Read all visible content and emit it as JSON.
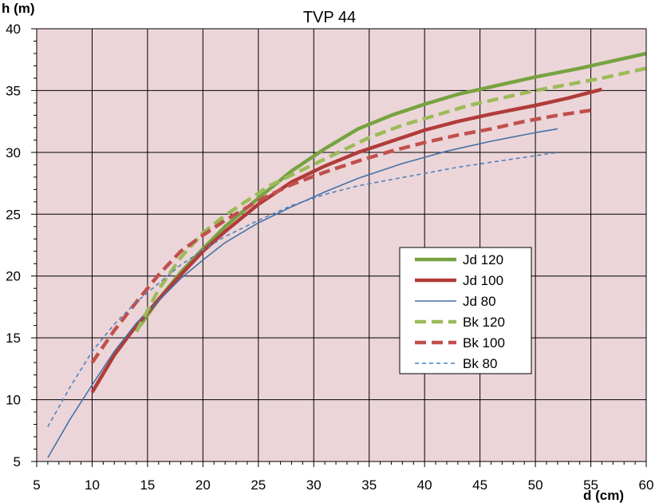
{
  "chart_data": {
    "type": "line",
    "title": "TVP 44",
    "xlabel": "d (cm)",
    "ylabel": "h (m)",
    "xlim": [
      5,
      60
    ],
    "ylim": [
      5,
      40
    ],
    "x_ticks": [
      5,
      10,
      15,
      20,
      25,
      30,
      35,
      40,
      45,
      50,
      55,
      60
    ],
    "y_ticks": [
      5,
      10,
      15,
      20,
      25,
      30,
      35,
      40
    ],
    "grid": true,
    "plot_background": "#ecd5d8",
    "legend_position": "center-right",
    "series": [
      {
        "name": "Jd 120",
        "color": "#77a342",
        "dash": "solid",
        "weight": "thick",
        "x": [
          14,
          16,
          18,
          20,
          22,
          25,
          28,
          31,
          34,
          37,
          40,
          43,
          46,
          50,
          54,
          57,
          60
        ],
        "y": [
          15.6,
          18.1,
          20.3,
          22.2,
          24.0,
          26.3,
          28.5,
          30.3,
          31.9,
          33.0,
          33.9,
          34.7,
          35.3,
          36.1,
          36.8,
          37.4,
          38.0
        ]
      },
      {
        "name": "Jd 100",
        "color": "#b03c3a",
        "dash": "solid",
        "weight": "thick",
        "x": [
          10,
          12,
          14,
          16,
          18,
          20,
          22,
          25,
          28,
          31,
          34,
          37,
          40,
          43,
          46,
          50,
          53,
          56
        ],
        "y": [
          10.6,
          13.6,
          16.0,
          18.1,
          20.1,
          22.0,
          23.6,
          25.8,
          27.6,
          28.9,
          30.0,
          30.9,
          31.8,
          32.5,
          33.1,
          33.8,
          34.4,
          35.1
        ]
      },
      {
        "name": "Jd 80",
        "color": "#4572a7",
        "dash": "solid",
        "weight": "thin",
        "x": [
          6,
          8,
          10,
          12,
          14,
          16,
          18,
          20,
          22,
          25,
          28,
          31,
          34,
          38,
          42,
          46,
          50,
          52
        ],
        "y": [
          5.3,
          8.4,
          11.2,
          13.9,
          16.2,
          18.0,
          19.8,
          21.3,
          22.7,
          24.3,
          25.6,
          26.8,
          27.9,
          29.1,
          30.1,
          30.9,
          31.6,
          31.9
        ]
      },
      {
        "name": "Bk 120",
        "color": "#9bbb59",
        "dash": "dashed",
        "weight": "thick",
        "x": [
          14,
          16,
          18,
          20,
          22,
          24,
          26,
          29,
          32,
          35,
          38,
          41,
          44,
          47,
          50,
          53,
          56,
          60
        ],
        "y": [
          15.5,
          18.9,
          21.5,
          23.5,
          24.9,
          26.1,
          27.3,
          28.6,
          29.9,
          31.2,
          32.2,
          33.0,
          33.8,
          34.4,
          35.0,
          35.5,
          36.0,
          36.8
        ]
      },
      {
        "name": "Bk 100",
        "color": "#c0504d",
        "dash": "dashed",
        "weight": "thick",
        "x": [
          10,
          12,
          14,
          16,
          18,
          20,
          22,
          25,
          28,
          31,
          34,
          37,
          40,
          43,
          46,
          49,
          52,
          55
        ],
        "y": [
          13.0,
          15.6,
          17.9,
          20.1,
          22.0,
          23.3,
          24.5,
          26.1,
          27.4,
          28.4,
          29.3,
          30.1,
          30.8,
          31.4,
          31.9,
          32.5,
          33.0,
          33.4
        ]
      },
      {
        "name": "Bk 80",
        "color": "#4f81bd",
        "dash": "dashed",
        "weight": "thin",
        "x": [
          6,
          8,
          10,
          12,
          14,
          16,
          18,
          20,
          22,
          25,
          28,
          31,
          34,
          37,
          40,
          43,
          46,
          49,
          52
        ],
        "y": [
          7.8,
          11.0,
          13.9,
          16.1,
          17.9,
          19.4,
          20.9,
          22.1,
          23.2,
          24.5,
          25.7,
          26.6,
          27.3,
          27.8,
          28.3,
          28.8,
          29.2,
          29.6,
          30.0
        ]
      }
    ]
  }
}
